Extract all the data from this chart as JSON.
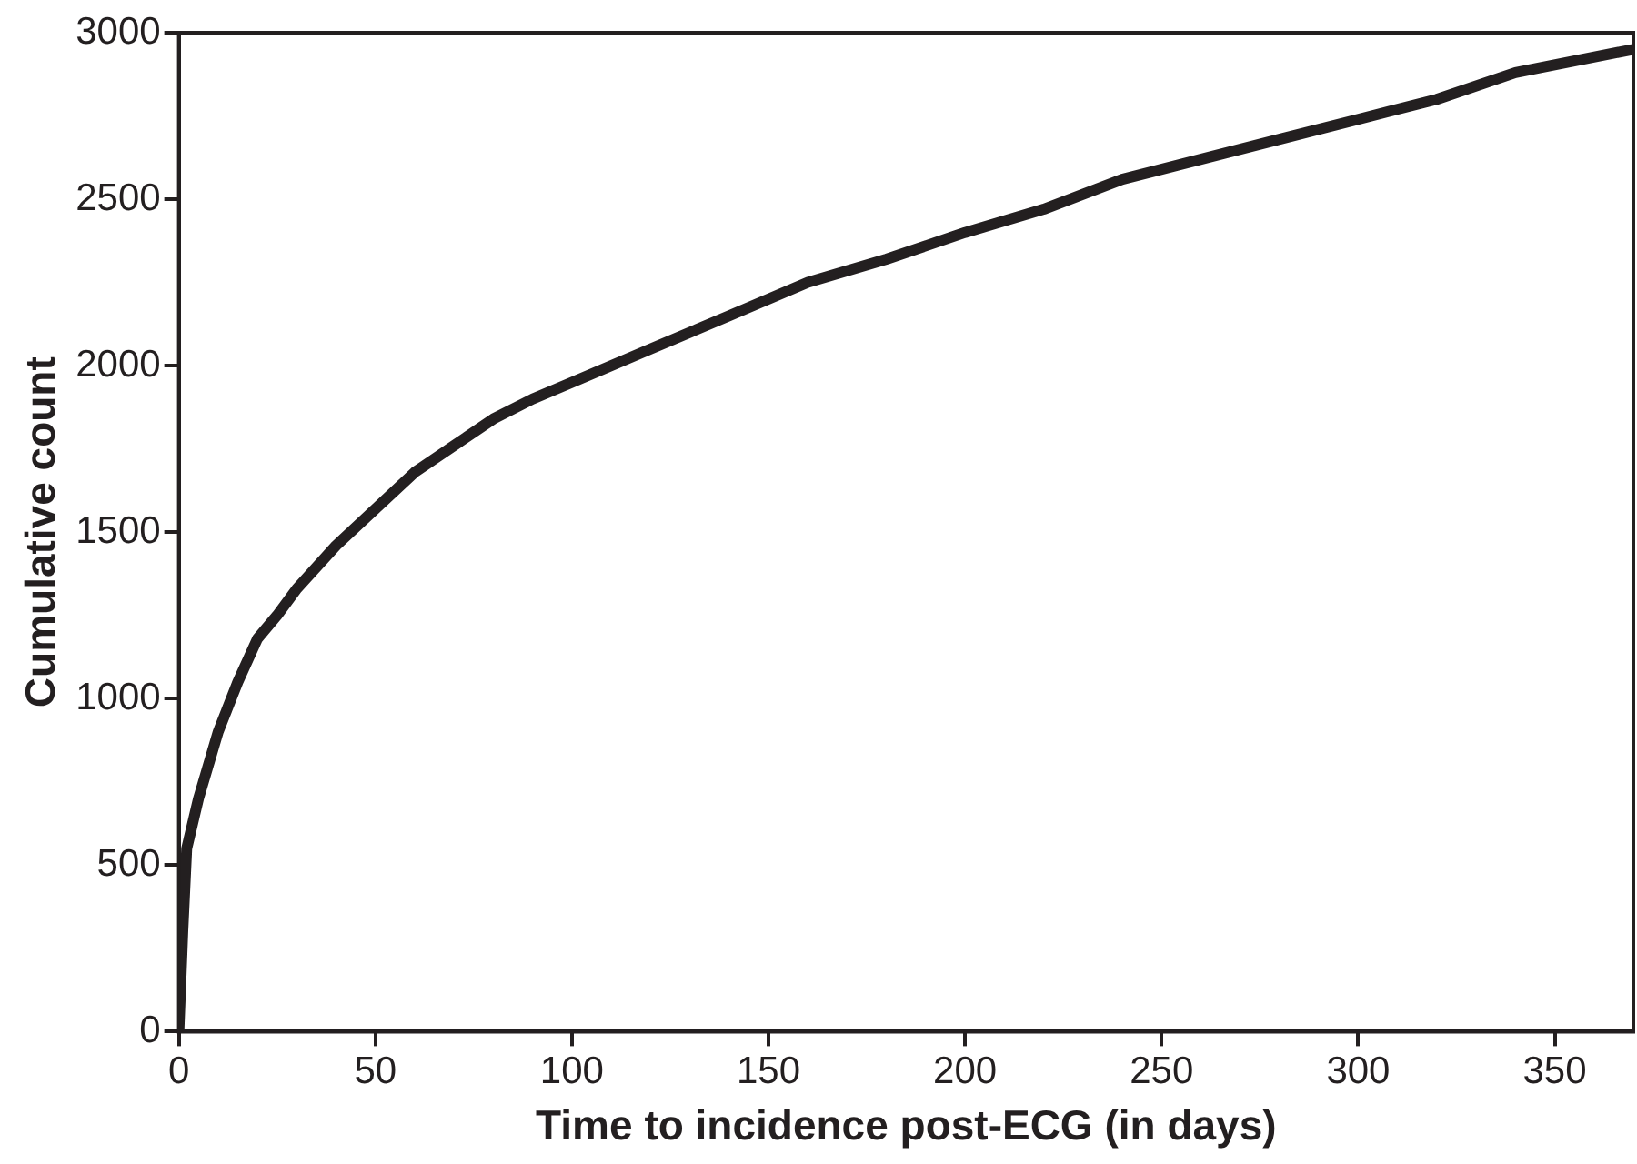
{
  "chart_data": {
    "type": "line",
    "xlabel": "Time to incidence post-ECG (in days)",
    "ylabel": "Cumulative count",
    "x": [
      0,
      1,
      2,
      5,
      10,
      15,
      20,
      25,
      30,
      40,
      50,
      60,
      70,
      80,
      90,
      100,
      120,
      140,
      160,
      180,
      200,
      220,
      240,
      260,
      280,
      300,
      320,
      340,
      370
    ],
    "series": [
      {
        "color": "#231f20",
        "values": [
          0,
          300,
          550,
          700,
          900,
          1050,
          1180,
          1250,
          1330,
          1460,
          1570,
          1680,
          1760,
          1840,
          1900,
          1950,
          2050,
          2150,
          2250,
          2320,
          2400,
          2470,
          2560,
          2620,
          2680,
          2740,
          2800,
          2880,
          2950
        ]
      }
    ],
    "xlim": [
      0,
      370
    ],
    "xticks": [
      0,
      50,
      100,
      150,
      200,
      250,
      300,
      350
    ],
    "ylim": [
      0,
      3000
    ],
    "yticks": [
      0,
      500,
      1000,
      1500,
      2000,
      2500,
      3000
    ],
    "grid": false,
    "legend": false,
    "marker": "none",
    "line_style": "solid"
  }
}
